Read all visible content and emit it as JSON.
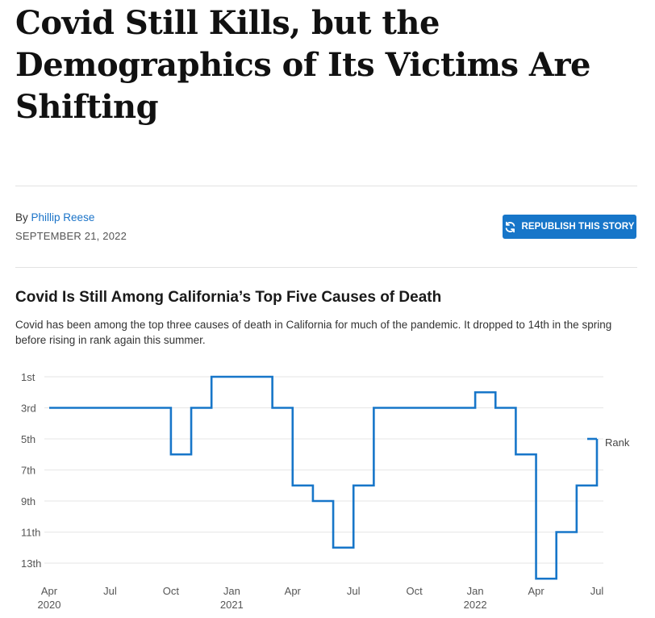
{
  "article": {
    "headline": "Covid Still Kills, but the Demographics of Its Victims Are Shifting",
    "by_prefix": "By",
    "author": "Phillip Reese",
    "date": "SEPTEMBER 21, 2022",
    "republish_label": "REPUBLISH THIS STORY",
    "republish_icon": "refresh-icon",
    "accent_color": "#1776c9"
  },
  "chart_data": {
    "type": "line",
    "step": true,
    "title": "Covid Is Still Among California’s Top Five Causes of Death",
    "subtitle": "Covid has been among the top three causes of death in California for much of the pandemic. It dropped to 14th in the spring before rising in rank again this summer.",
    "y_reversed": true,
    "ylim": [
      1,
      14
    ],
    "y_ticks": [
      1,
      3,
      5,
      7,
      9,
      11,
      13
    ],
    "y_tick_labels": [
      "1st",
      "3rd",
      "5th",
      "7th",
      "9th",
      "11th",
      "13th"
    ],
    "x_ticks": [
      {
        "date": "2020-04-01",
        "label": "Apr",
        "year": "2020"
      },
      {
        "date": "2020-07-01",
        "label": "Jul",
        "year": ""
      },
      {
        "date": "2020-10-01",
        "label": "Oct",
        "year": ""
      },
      {
        "date": "2021-01-01",
        "label": "Jan",
        "year": "2021"
      },
      {
        "date": "2021-04-01",
        "label": "Apr",
        "year": ""
      },
      {
        "date": "2021-07-01",
        "label": "Jul",
        "year": ""
      },
      {
        "date": "2021-10-01",
        "label": "Oct",
        "year": ""
      },
      {
        "date": "2022-01-01",
        "label": "Jan",
        "year": "2022"
      },
      {
        "date": "2022-04-01",
        "label": "Apr",
        "year": ""
      },
      {
        "date": "2022-07-01",
        "label": "Jul",
        "year": ""
      }
    ],
    "series": [
      {
        "name": "Rank",
        "color": "#1776c9",
        "points": [
          {
            "x": "2020-04",
            "y": 3
          },
          {
            "x": "2020-05",
            "y": 3
          },
          {
            "x": "2020-06",
            "y": 3
          },
          {
            "x": "2020-07",
            "y": 3
          },
          {
            "x": "2020-08",
            "y": 3
          },
          {
            "x": "2020-09",
            "y": 3
          },
          {
            "x": "2020-10",
            "y": 6
          },
          {
            "x": "2020-11",
            "y": 3
          },
          {
            "x": "2020-12",
            "y": 1
          },
          {
            "x": "2021-01",
            "y": 1
          },
          {
            "x": "2021-02",
            "y": 1
          },
          {
            "x": "2021-03",
            "y": 3
          },
          {
            "x": "2021-04",
            "y": 8
          },
          {
            "x": "2021-05",
            "y": 9
          },
          {
            "x": "2021-06",
            "y": 12
          },
          {
            "x": "2021-07",
            "y": 8
          },
          {
            "x": "2021-08",
            "y": 3
          },
          {
            "x": "2021-09",
            "y": 3
          },
          {
            "x": "2021-10",
            "y": 3
          },
          {
            "x": "2021-11",
            "y": 3
          },
          {
            "x": "2021-12",
            "y": 3
          },
          {
            "x": "2022-01",
            "y": 2
          },
          {
            "x": "2022-02",
            "y": 3
          },
          {
            "x": "2022-03",
            "y": 6
          },
          {
            "x": "2022-04",
            "y": 14
          },
          {
            "x": "2022-05",
            "y": 11
          },
          {
            "x": "2022-06",
            "y": 8
          },
          {
            "x": "2022-07",
            "y": 5
          }
        ]
      }
    ],
    "grid": true
  }
}
